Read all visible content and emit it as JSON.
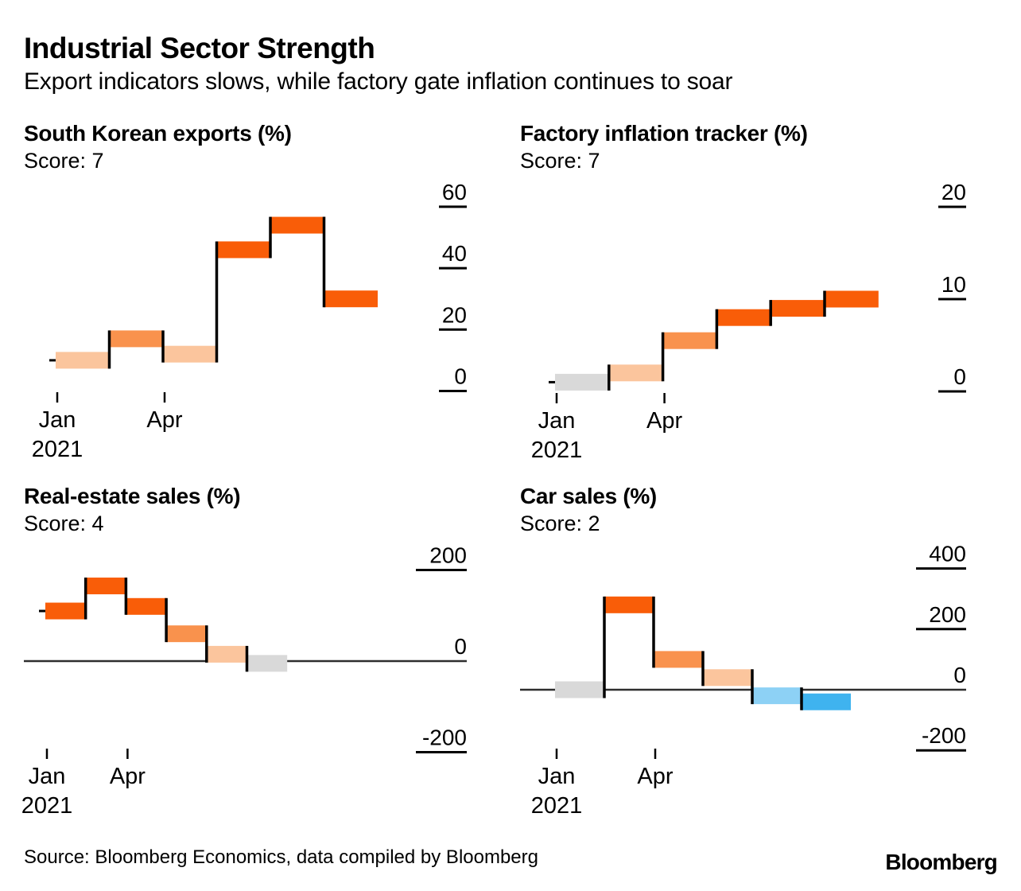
{
  "header": {
    "title": "Industrial Sector Strength",
    "subtitle": "Export indicators slows, while factory gate inflation continues to soar"
  },
  "palette": {
    "dark_orange": "#f95d08",
    "medium_orange": "#f9924d",
    "light_peach": "#fbc59d",
    "gray": "#d9d9d9",
    "light_blue": "#8dd1f5",
    "blue": "#3fb3ef",
    "zero_line": "#2e2e2e",
    "axis_black": "#000000"
  },
  "chart_data": [
    {
      "type": "waterfall-step",
      "title": "South Korean exports (%)",
      "score_label": "Score: 7",
      "values": [
        10,
        17,
        12,
        46,
        54,
        30
      ],
      "colors": [
        "light_peach",
        "medium_orange",
        "light_peach",
        "dark_orange",
        "dark_orange",
        "dark_orange"
      ],
      "yticks": [
        60,
        40,
        20,
        0
      ],
      "ylim": [
        0,
        60
      ],
      "xticks": [
        {
          "label": "Jan",
          "sublabel": "2021",
          "bar_index": 0
        },
        {
          "label": "Apr",
          "sublabel": "",
          "bar_index": 2
        }
      ]
    },
    {
      "type": "waterfall-step",
      "title": "Factory inflation tracker (%)",
      "score_label": "Score: 7",
      "values": [
        1,
        2,
        5.5,
        8,
        9,
        10
      ],
      "colors": [
        "gray",
        "light_peach",
        "medium_orange",
        "dark_orange",
        "dark_orange",
        "dark_orange"
      ],
      "yticks": [
        20,
        10,
        0
      ],
      "ylim": [
        0,
        20
      ],
      "xticks": [
        {
          "label": "Jan",
          "sublabel": "2021",
          "bar_index": 0
        },
        {
          "label": "Apr",
          "sublabel": "",
          "bar_index": 2
        }
      ]
    },
    {
      "type": "waterfall-step",
      "title": "Real-estate sales (%)",
      "score_label": "Score: 4",
      "values": [
        110,
        165,
        120,
        60,
        15,
        -5
      ],
      "colors": [
        "dark_orange",
        "dark_orange",
        "dark_orange",
        "medium_orange",
        "light_peach",
        "gray"
      ],
      "yticks": [
        200,
        0,
        -200
      ],
      "ylim": [
        -200,
        200
      ],
      "xticks": [
        {
          "label": "Jan",
          "sublabel": "2021",
          "bar_index": 0
        },
        {
          "label": "Apr",
          "sublabel": "",
          "bar_index": 2
        }
      ]
    },
    {
      "type": "waterfall-step",
      "title": "Car sales (%)",
      "score_label": "Score: 2",
      "values": [
        0,
        280,
        100,
        40,
        -20,
        -40
      ],
      "colors": [
        "gray",
        "dark_orange",
        "medium_orange",
        "light_peach",
        "light_blue",
        "blue"
      ],
      "yticks": [
        400,
        200,
        0,
        -200
      ],
      "ylim": [
        -200,
        400
      ],
      "xticks": [
        {
          "label": "Jan",
          "sublabel": "2021",
          "bar_index": 0
        },
        {
          "label": "Apr",
          "sublabel": "",
          "bar_index": 2
        }
      ]
    }
  ],
  "footer": {
    "source": "Source: Bloomberg Economics, data compiled by Bloomberg",
    "logo": "Bloomberg"
  }
}
